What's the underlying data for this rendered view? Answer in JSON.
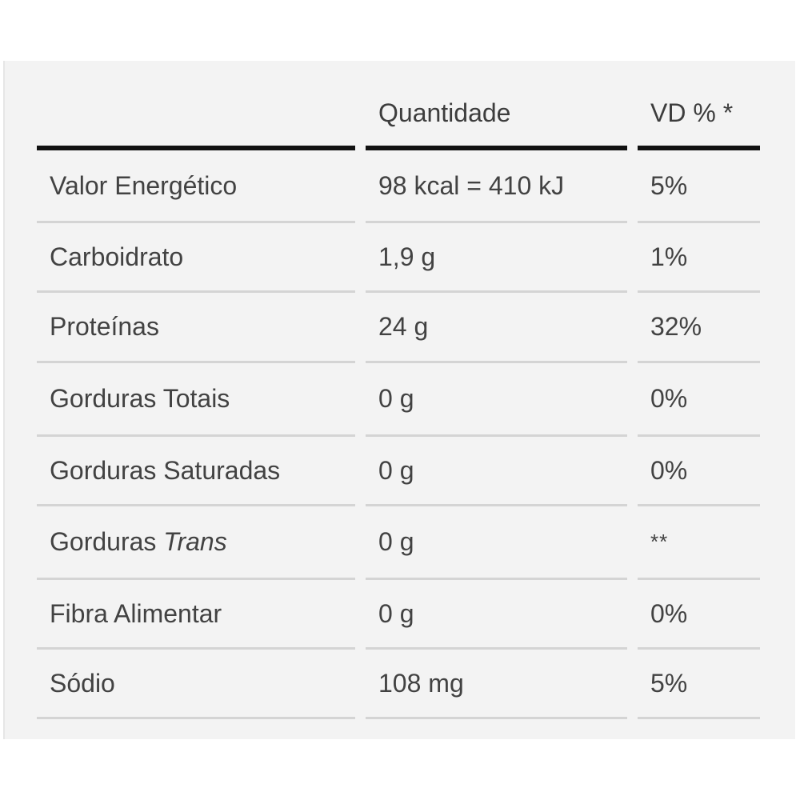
{
  "table": {
    "header": {
      "nutrient": "",
      "amount": "Quantidade",
      "dv": "VD % *"
    },
    "rows": [
      {
        "nutrient": "Valor Energético",
        "amount": "98 kcal = 410 kJ",
        "dv": "5%"
      },
      {
        "nutrient": "Carboidrato",
        "amount": "1,9 g",
        "dv": "1%"
      },
      {
        "nutrient": "Proteínas",
        "amount": "24 g",
        "dv": "32%"
      },
      {
        "nutrient": "Gorduras Totais",
        "amount": "0 g",
        "dv": "0%"
      },
      {
        "nutrient": "Gorduras Saturadas",
        "amount": "0 g",
        "dv": "0%"
      },
      {
        "nutrient": "Gorduras",
        "nutrient_italic": "Trans",
        "amount": "0 g",
        "dv": "**"
      },
      {
        "nutrient": "Fibra Alimentar",
        "amount": "0 g",
        "dv": "0%"
      },
      {
        "nutrient": "Sódio",
        "amount": "108 mg",
        "dv": "5%"
      }
    ]
  }
}
